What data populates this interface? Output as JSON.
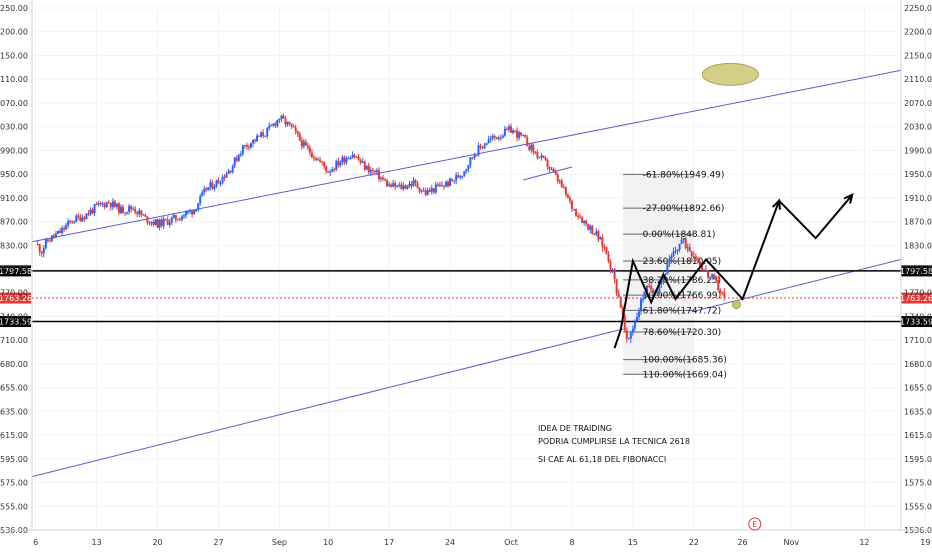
{
  "chart_data": {
    "type": "candlestick",
    "ylim": [
      1536.0,
      2250.0
    ],
    "y_ticks": [
      1536.0,
      1555.0,
      1575.0,
      1595.0,
      1615.0,
      1635.0,
      1655.0,
      1680.0,
      1710.0,
      1740.0,
      1770.0,
      1800.0,
      1830.0,
      1870.0,
      1910.0,
      1950.0,
      1990.0,
      2030.0,
      2070.0,
      2110.0,
      2150.0,
      2200.0,
      2250.0
    ],
    "y_tick_labels": [
      "1536.00",
      "1555.00",
      "1575.00",
      "1595.00",
      "1615.00",
      "1635.00",
      "1655.00",
      "1680.00",
      "1710.00",
      "1740.00",
      "1770.00",
      "1800.00",
      "1830.00",
      "1870.00",
      "1910.00",
      "1950.00",
      "1990.00",
      "2030.00",
      "2070.00",
      "2110.00",
      "2150.00",
      "2200.00",
      "2250.00"
    ],
    "x_ticks": [
      {
        "label": "6",
        "x": 0.0
      },
      {
        "label": "13",
        "x": 5.0
      },
      {
        "label": "20",
        "x": 10.0
      },
      {
        "label": "27",
        "x": 15.0
      },
      {
        "label": "Sep",
        "x": 20.0
      },
      {
        "label": "10",
        "x": 24.0
      },
      {
        "label": "17",
        "x": 29.0
      },
      {
        "label": "24",
        "x": 34.0
      },
      {
        "label": "Oct",
        "x": 39.0
      },
      {
        "label": "8",
        "x": 44.0
      },
      {
        "label": "15",
        "x": 49.0
      },
      {
        "label": "22",
        "x": 54.0
      },
      {
        "label": "26",
        "x": 58.0
      },
      {
        "label": "Nov",
        "x": 62.0
      },
      {
        "label": "12",
        "x": 68.0
      },
      {
        "label": "19",
        "x": 73.0
      }
    ],
    "xlim": [
      -0.3,
      71.0
    ],
    "price_series": [
      [
        0.0,
        1832
      ],
      [
        0.5,
        1824
      ],
      [
        1.0,
        1838
      ],
      [
        2.0,
        1852
      ],
      [
        3.0,
        1872
      ],
      [
        4.0,
        1880
      ],
      [
        5.0,
        1895
      ],
      [
        6.0,
        1903
      ],
      [
        7.0,
        1889
      ],
      [
        8.0,
        1893
      ],
      [
        9.0,
        1875
      ],
      [
        10.0,
        1866
      ],
      [
        11.0,
        1872
      ],
      [
        12.0,
        1880
      ],
      [
        13.0,
        1890
      ],
      [
        14.0,
        1925
      ],
      [
        15.0,
        1938
      ],
      [
        16.0,
        1960
      ],
      [
        17.0,
        1995
      ],
      [
        18.0,
        2008
      ],
      [
        19.0,
        2022
      ],
      [
        20.0,
        2045
      ],
      [
        21.0,
        2028
      ],
      [
        22.0,
        1998
      ],
      [
        23.0,
        1978
      ],
      [
        24.0,
        1955
      ],
      [
        25.0,
        1972
      ],
      [
        26.0,
        1985
      ],
      [
        27.0,
        1962
      ],
      [
        28.0,
        1950
      ],
      [
        29.0,
        1930
      ],
      [
        30.0,
        1928
      ],
      [
        31.0,
        1935
      ],
      [
        32.0,
        1918
      ],
      [
        33.0,
        1928
      ],
      [
        34.0,
        1936
      ],
      [
        35.0,
        1952
      ],
      [
        36.0,
        1985
      ],
      [
        37.0,
        2005
      ],
      [
        38.0,
        2015
      ],
      [
        39.0,
        2025
      ],
      [
        40.0,
        2010
      ],
      [
        41.0,
        1985
      ],
      [
        42.0,
        1965
      ],
      [
        43.0,
        1935
      ],
      [
        44.0,
        1895
      ],
      [
        45.0,
        1870
      ],
      [
        46.0,
        1848
      ],
      [
        47.0,
        1815
      ],
      [
        48.0,
        1755
      ],
      [
        48.5,
        1705
      ],
      [
        49.0,
        1728
      ],
      [
        50.0,
        1772
      ],
      [
        51.0,
        1778
      ],
      [
        52.0,
        1808
      ],
      [
        53.0,
        1838
      ],
      [
        54.0,
        1820
      ],
      [
        55.0,
        1795
      ],
      [
        56.0,
        1778
      ],
      [
        56.5,
        1763
      ]
    ],
    "candle_up_color": "#2962ff",
    "candle_down_color": "#e53935",
    "trend_channel": {
      "upper_line": {
        "x1": -0.3,
        "y1": 1836,
        "x2": 71.0,
        "y2": 2125
      },
      "lower_line": {
        "x1": -0.3,
        "y1": 1580,
        "x2": 71.0,
        "y2": 1812
      },
      "inner_line": {
        "x1": 40.0,
        "y1": 1940,
        "x2": 44.0,
        "y2": 1962
      },
      "color": "#5b5bd6"
    },
    "horizontal_levels": [
      {
        "value": 1797.58,
        "label": "1797.58",
        "style": "solid",
        "color": "#000000"
      },
      {
        "value": 1733.59,
        "label": "1733.59",
        "style": "solid",
        "color": "#000000"
      },
      {
        "value": 1763.26,
        "label": "1763.26",
        "style": "dotted",
        "color": "#e53935"
      }
    ],
    "fibonacci": {
      "x_start": 48.2,
      "x_end": 54.0,
      "label_x": 49.8,
      "levels": [
        {
          "ratio": -0.618,
          "price": 1949.49,
          "label": "-61.80%(1949.49)"
        },
        {
          "ratio": -0.27,
          "price": 1892.66,
          "label": "-27.00%(1892.66)"
        },
        {
          "ratio": 0.0,
          "price": 1848.81,
          "label": "0.00%(1848.81)"
        },
        {
          "ratio": 0.236,
          "price": 1810.05,
          "label": "23.60%(1810.05)"
        },
        {
          "ratio": 0.382,
          "price": 1786.25,
          "label": "38.20%(1786.25)"
        },
        {
          "ratio": 0.5,
          "price": 1766.99,
          "label": "50.00%(1766.99)"
        },
        {
          "ratio": 0.618,
          "price": 1747.72,
          "label": "61.80%(1747.72)"
        },
        {
          "ratio": 0.786,
          "price": 1720.3,
          "label": "78.60%(1720.30)"
        },
        {
          "ratio": 1.0,
          "price": 1685.36,
          "label": "100.00%(1685.36)"
        },
        {
          "ratio": 1.1,
          "price": 1669.04,
          "label": "110.00%(1669.04)"
        }
      ]
    },
    "projection_path": [
      [
        47.5,
        1700
      ],
      [
        48.0,
        1723
      ],
      [
        49.0,
        1810
      ],
      [
        50.5,
        1758
      ],
      [
        51.5,
        1793
      ],
      [
        52.5,
        1762
      ],
      [
        53.5,
        1782
      ],
      [
        55.0,
        1812
      ],
      [
        58.0,
        1762
      ],
      [
        61.0,
        1905
      ],
      [
        64.0,
        1842
      ],
      [
        67.0,
        1915
      ]
    ],
    "annotations": [
      "IDEA DE TRAIDING",
      "PODRIA CUMPLIRSE LA TECNICA 2618",
      "SI CAE AL 61,18 DEL FIBONACCI"
    ],
    "ellipse_highlight": {
      "cx": 57.0,
      "cy": 2118,
      "color": "#c9c26a"
    },
    "marker_circle": {
      "x": 57.5,
      "y": 1755,
      "color": "#c9c26a"
    },
    "event_badge": {
      "label": "E",
      "x": 59.0,
      "color": "#e53935"
    }
  }
}
